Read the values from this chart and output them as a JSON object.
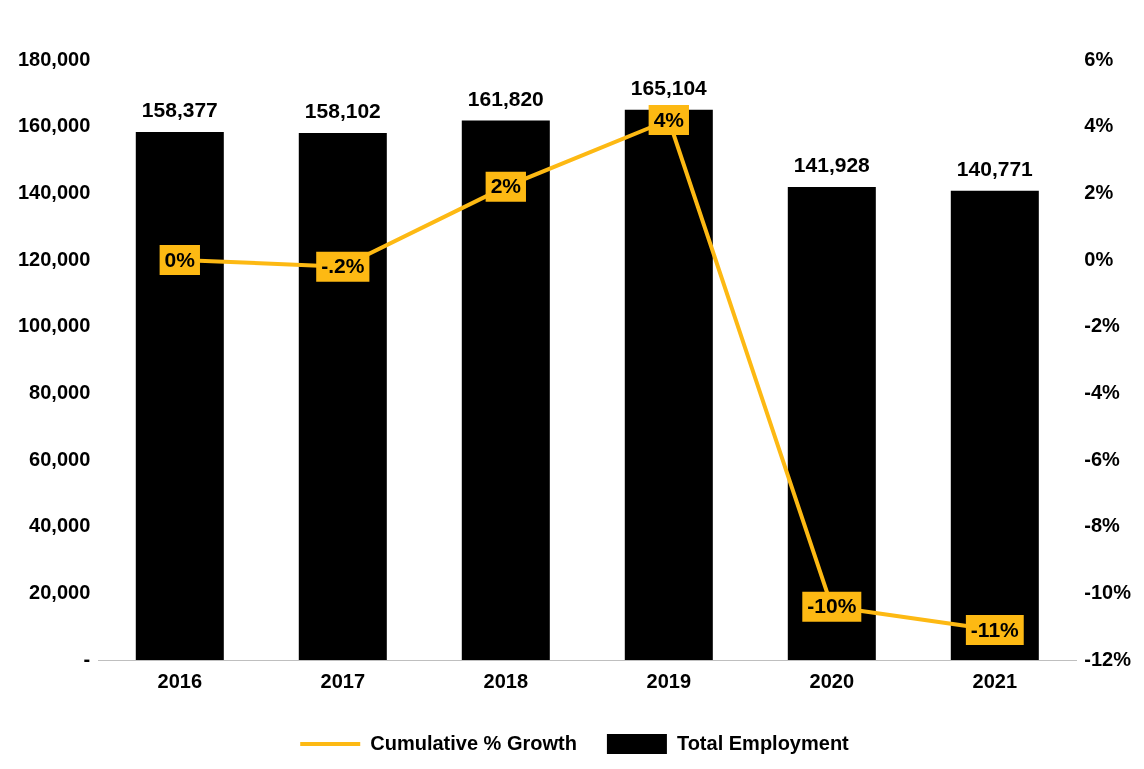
{
  "chart_data": {
    "type": "bar",
    "categories": [
      "2016",
      "2017",
      "2018",
      "2019",
      "2020",
      "2021"
    ],
    "series": [
      {
        "name": "Total Employment",
        "color": "#000000",
        "values": [
          158377,
          158102,
          161820,
          165104,
          141928,
          140771
        ],
        "value_labels": [
          "158,377",
          "158,102",
          "161,820",
          "165,104",
          "141,928",
          "140,771"
        ]
      },
      {
        "name": "Cumulative % Growth",
        "type": "line",
        "axis": "y2",
        "color": "#fdb913",
        "values": [
          0,
          -0.2,
          2.2,
          4.2,
          -10.4,
          -11.1
        ],
        "value_labels": [
          "0%",
          "-.2%",
          "2%",
          "4%",
          "-10%",
          "-11%"
        ]
      }
    ],
    "ylim": [
      0,
      180000
    ],
    "yticks": [
      {
        "value": 0,
        "label": "-"
      },
      {
        "value": 20000,
        "label": "20,000"
      },
      {
        "value": 40000,
        "label": "40,000"
      },
      {
        "value": 60000,
        "label": "60,000"
      },
      {
        "value": 80000,
        "label": "80,000"
      },
      {
        "value": 100000,
        "label": "100,000"
      },
      {
        "value": 120000,
        "label": "120,000"
      },
      {
        "value": 140000,
        "label": "140,000"
      },
      {
        "value": 160000,
        "label": "160,000"
      },
      {
        "value": 180000,
        "label": "180,000"
      }
    ],
    "y2lim": [
      -12,
      6
    ],
    "y2ticks": [
      {
        "value": -12,
        "label": "-12%"
      },
      {
        "value": -10,
        "label": "-10%"
      },
      {
        "value": -8,
        "label": "-8%"
      },
      {
        "value": -6,
        "label": "-6%"
      },
      {
        "value": -4,
        "label": "-4%"
      },
      {
        "value": -2,
        "label": "-2%"
      },
      {
        "value": 0,
        "label": "0%"
      },
      {
        "value": 2,
        "label": "2%"
      },
      {
        "value": 4,
        "label": "4%"
      },
      {
        "value": 6,
        "label": "6%"
      }
    ],
    "grid": false,
    "legend": "bottom",
    "line_style": "solid"
  }
}
